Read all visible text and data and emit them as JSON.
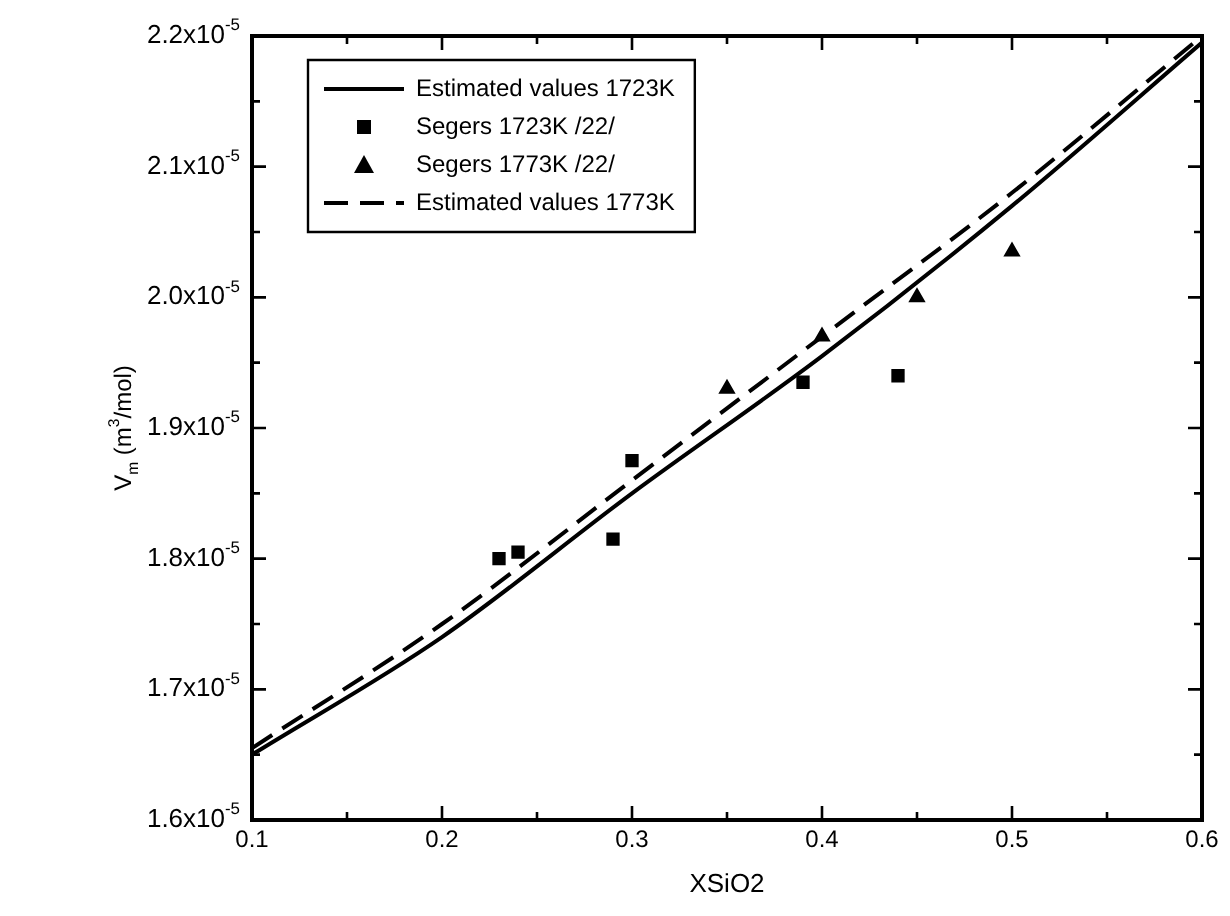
{
  "chart_data": {
    "type": "line",
    "xlabel": "XSiO2",
    "ylabel": "V$_{m}$ (m$^{3}$/mol)",
    "legend": "top left",
    "grid": false,
    "xlim": [
      0.1,
      0.6
    ],
    "ylim": [
      1.6e-05,
      2.2e-05
    ],
    "xticks": [
      0.1,
      {
        "value": 0.15,
        "label": null
      },
      0.2,
      {
        "value": 0.25,
        "label": null
      },
      0.3,
      {
        "value": 0.35,
        "label": null
      },
      0.4,
      {
        "value": 0.45,
        "label": null
      },
      0.5,
      {
        "value": 0.55,
        "label": null
      },
      0.6
    ],
    "yticks": [
      {
        "value": 1.6e-05,
        "label": "1.6x10$^{-5}$"
      },
      {
        "value": 1.65e-05,
        "label": null
      },
      {
        "value": 1.7e-05,
        "label": "1.7x10$^{-5}$"
      },
      {
        "value": 1.75e-05,
        "label": null
      },
      {
        "value": 1.8e-05,
        "label": "1.8x10$^{-5}$"
      },
      {
        "value": 1.85e-05,
        "label": null
      },
      {
        "value": 1.9e-05,
        "label": "1.9x10$^{-5}$"
      },
      {
        "value": 1.95e-05,
        "label": null
      },
      {
        "value": 2e-05,
        "label": "2.0x10$^{-5}$"
      },
      {
        "value": 2.05e-05,
        "label": null
      },
      {
        "value": 2.1e-05,
        "label": "2.1x10$^{-5}$"
      },
      {
        "value": 2.15e-05,
        "label": null
      },
      {
        "value": 2.2e-05,
        "label": "2.2x10$^{-5}$"
      }
    ],
    "series": [
      {
        "name": "Estimated values 1723K",
        "type": "line",
        "line_style": "solid",
        "marker": "none",
        "color": "#000000",
        "x": [
          0.1,
          0.2,
          0.3,
          0.4,
          0.5,
          0.6
        ],
        "values": [
          1.65e-05,
          1.74e-05,
          1.85e-05,
          1.955e-05,
          2.07e-05,
          2.195e-05
        ]
      },
      {
        "name": "Segers 1723K /22/",
        "type": "scatter",
        "marker": "square",
        "color": "#000000",
        "x": [
          0.23,
          0.24,
          0.29,
          0.3,
          0.39,
          0.44
        ],
        "values": [
          1.8e-05,
          1.805e-05,
          1.815e-05,
          1.875e-05,
          1.935e-05,
          1.94e-05
        ]
      },
      {
        "name": "Segers 1773K /22/",
        "type": "scatter",
        "marker": "triangle",
        "color": "#000000",
        "x": [
          0.35,
          0.4,
          0.45,
          0.5
        ],
        "values": [
          1.93e-05,
          1.97e-05,
          2e-05,
          2.035e-05
        ]
      },
      {
        "name": "Estimated values 1773K",
        "type": "line",
        "line_style": "dashed",
        "marker": "none",
        "color": "#000000",
        "x": [
          0.1,
          0.2,
          0.3,
          0.4,
          0.5,
          0.6
        ],
        "values": [
          1.655e-05,
          1.75e-05,
          1.86e-05,
          1.97e-05,
          2.08e-05,
          2.2e-05
        ]
      }
    ]
  }
}
